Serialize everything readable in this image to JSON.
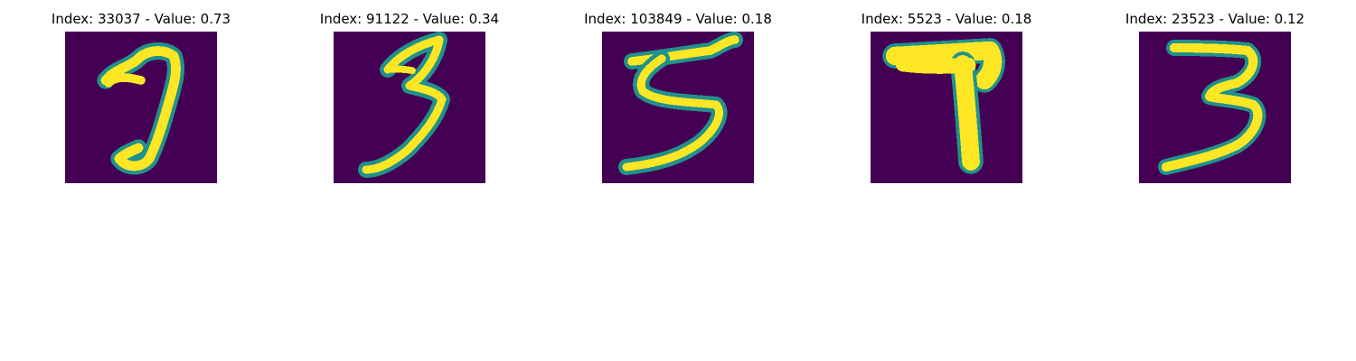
{
  "figure": {
    "colormap": "viridis",
    "colors": {
      "background": "#440154",
      "stroke": "#fde725",
      "edge": "#21918c"
    },
    "panels": [
      {
        "title": "Index: 33037 - Value: 0.73",
        "index": 33037,
        "value": 0.73,
        "depicts": "handwritten-digit-7"
      },
      {
        "title": "Index: 91122 - Value: 0.34",
        "index": 91122,
        "value": 0.34,
        "depicts": "handwritten-digit-3"
      },
      {
        "title": "Index: 103849 - Value: 0.18",
        "index": 103849,
        "value": 0.18,
        "depicts": "handwritten-digit-5"
      },
      {
        "title": "Index: 5523 - Value: 0.18",
        "index": 5523,
        "value": 0.18,
        "depicts": "handwritten-digit-7"
      },
      {
        "title": "Index: 23523 - Value: 0.12",
        "index": 23523,
        "value": 0.12,
        "depicts": "handwritten-digit-3"
      }
    ]
  }
}
